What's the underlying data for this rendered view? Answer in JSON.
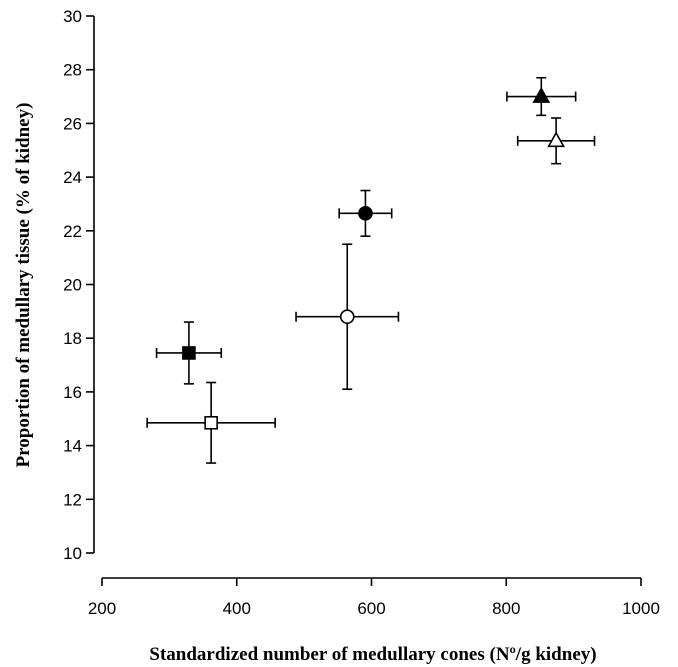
{
  "chart_data": {
    "type": "scatter",
    "title": "",
    "xlabel": "Standardized number of medullary cones (Nº/g kidney)",
    "ylabel": "Proportion of medullary tissue (% of kidney)",
    "xlim": [
      200,
      1000
    ],
    "ylim": [
      10,
      30
    ],
    "x_ticks": [
      "200",
      "400",
      "600",
      "800",
      "1000"
    ],
    "y_ticks": [
      "10",
      "12",
      "14",
      "16",
      "18",
      "20",
      "22",
      "24",
      "26",
      "28",
      "30"
    ],
    "grid": false,
    "legend": "none",
    "points": [
      {
        "marker": "square",
        "filled": true,
        "x": 329,
        "y": 17.45,
        "x_err": 48,
        "y_err_low": 1.15,
        "y_err_high": 1.15
      },
      {
        "marker": "square",
        "filled": false,
        "x": 362,
        "y": 14.85,
        "x_err": 95,
        "y_err_low": 1.5,
        "y_err_high": 1.5
      },
      {
        "marker": "circle",
        "filled": true,
        "x": 591,
        "y": 22.65,
        "x_err": 39,
        "y_err_low": 0.85,
        "y_err_high": 0.85
      },
      {
        "marker": "circle",
        "filled": false,
        "x": 564,
        "y": 18.8,
        "x_err": 76,
        "y_err_low": 2.7,
        "y_err_high": 2.7
      },
      {
        "marker": "triangle",
        "filled": true,
        "x": 852,
        "y": 27.0,
        "x_err": 51,
        "y_err_low": 0.7,
        "y_err_high": 0.7
      },
      {
        "marker": "triangle",
        "filled": false,
        "x": 874,
        "y": 25.35,
        "x_err": 57,
        "y_err_low": 0.85,
        "y_err_high": 0.85
      }
    ]
  }
}
